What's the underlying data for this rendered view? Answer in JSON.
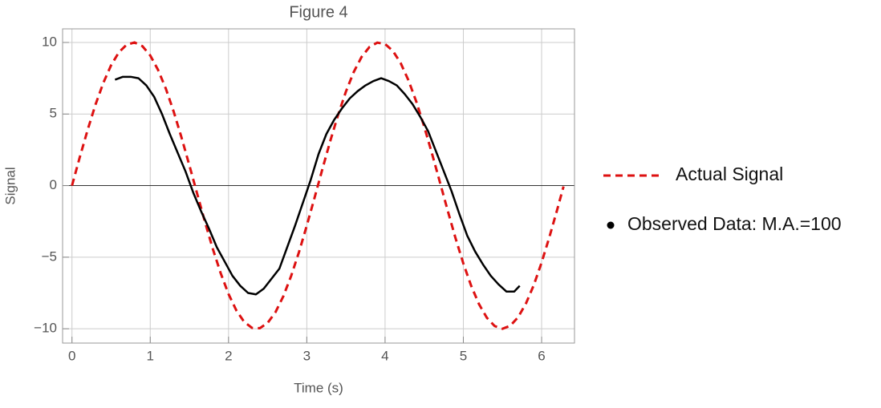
{
  "chart_data": {
    "type": "line",
    "title": "Figure 4",
    "xlabel": "Time (s)",
    "ylabel": "Signal",
    "xlim": [
      -0.12,
      6.42
    ],
    "ylim": [
      -11,
      10.95
    ],
    "xticks": [
      0,
      1,
      2,
      3,
      4,
      5,
      6
    ],
    "yticks": [
      {
        "value": -10,
        "label": "−10"
      },
      {
        "value": -5,
        "label": "−5"
      },
      0,
      5,
      10
    ],
    "grid": true,
    "legend": "right",
    "series": [
      {
        "name": "Actual Signal",
        "color": "#dd1111",
        "style": "dashed",
        "x": [
          0,
          0.1,
          0.2,
          0.3,
          0.4,
          0.5,
          0.6,
          0.7,
          0.8,
          0.9,
          1.0,
          1.1,
          1.2,
          1.3,
          1.4,
          1.5,
          1.6,
          1.7,
          1.8,
          1.9,
          2.0,
          2.1,
          2.2,
          2.3,
          2.4,
          2.5,
          2.6,
          2.7,
          2.8,
          2.9,
          3.0,
          3.1,
          3.2,
          3.3,
          3.4,
          3.5,
          3.6,
          3.7,
          3.8,
          3.9,
          4.0,
          4.1,
          4.2,
          4.3,
          4.4,
          4.5,
          4.6,
          4.7,
          4.8,
          4.9,
          5.0,
          5.1,
          5.2,
          5.3,
          5.4,
          5.5,
          5.6,
          5.7,
          5.8,
          5.9,
          6.0,
          6.1,
          6.2,
          6.28
        ],
        "values": [
          0,
          1.99,
          3.89,
          5.65,
          7.17,
          8.41,
          9.32,
          9.85,
          10.0,
          9.74,
          9.09,
          8.08,
          6.76,
          5.16,
          3.35,
          1.41,
          -0.58,
          -2.56,
          -4.43,
          -6.12,
          -7.57,
          -8.72,
          -9.52,
          -9.94,
          -9.96,
          -9.59,
          -8.84,
          -7.73,
          -6.31,
          -4.65,
          -2.79,
          -0.83,
          1.17,
          3.12,
          4.94,
          6.57,
          7.94,
          8.99,
          9.68,
          9.99,
          9.89,
          9.41,
          8.55,
          7.34,
          5.85,
          4.12,
          2.23,
          0.25,
          -1.74,
          -3.67,
          -5.44,
          -7.0,
          -8.28,
          -9.23,
          -9.81,
          -10.0,
          -9.79,
          -9.19,
          -8.23,
          -6.95,
          -5.37,
          -3.58,
          -1.66,
          -0.06
        ]
      },
      {
        "name": "Observed Data: M.A.=100",
        "color": "#000000",
        "style": "dots",
        "x": [
          0.55,
          0.65,
          0.75,
          0.85,
          0.95,
          1.05,
          1.15,
          1.25,
          1.35,
          1.45,
          1.55,
          1.65,
          1.75,
          1.85,
          1.95,
          2.05,
          2.15,
          2.25,
          2.35,
          2.45,
          2.55,
          2.65,
          2.75,
          2.85,
          2.95,
          3.05,
          3.15,
          3.25,
          3.35,
          3.45,
          3.55,
          3.65,
          3.75,
          3.85,
          3.95,
          4.05,
          4.15,
          4.25,
          4.35,
          4.45,
          4.55,
          4.65,
          4.75,
          4.85,
          4.95,
          5.05,
          5.15,
          5.25,
          5.35,
          5.45,
          5.55,
          5.65,
          5.72
        ],
        "values": [
          7.4,
          7.6,
          7.6,
          7.5,
          7.0,
          6.2,
          5.0,
          3.6,
          2.3,
          1.0,
          -0.5,
          -1.8,
          -3.0,
          -4.3,
          -5.3,
          -6.3,
          -7.0,
          -7.5,
          -7.6,
          -7.2,
          -6.5,
          -5.8,
          -4.3,
          -2.8,
          -1.2,
          0.4,
          2.2,
          3.6,
          4.6,
          5.4,
          6.1,
          6.6,
          7.0,
          7.3,
          7.5,
          7.3,
          7.0,
          6.4,
          5.7,
          4.8,
          3.8,
          2.4,
          1.0,
          -0.4,
          -2.0,
          -3.5,
          -4.6,
          -5.5,
          -6.3,
          -6.9,
          -7.4,
          -7.4,
          -7.0
        ]
      }
    ]
  }
}
